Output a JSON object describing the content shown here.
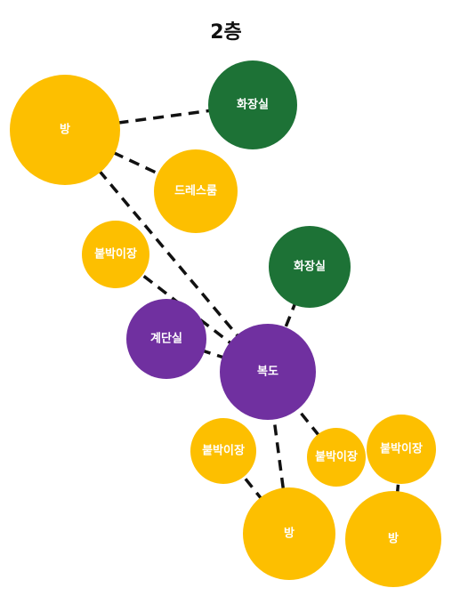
{
  "title": "2층",
  "colors": {
    "room": "#FDBF00",
    "bathroom": "#1D7236",
    "circulation": "#7030A0",
    "label": "#FFFFFF",
    "edge": "#111111"
  },
  "nodes": [
    {
      "id": "room-1",
      "label": "방",
      "kind": "room"
    },
    {
      "id": "bathroom-1",
      "label": "화장실",
      "kind": "bathroom"
    },
    {
      "id": "dressroom",
      "label": "드레스룸",
      "kind": "room"
    },
    {
      "id": "closet-1",
      "label": "붙박이장",
      "kind": "room"
    },
    {
      "id": "bathroom-2",
      "label": "화장실",
      "kind": "bathroom"
    },
    {
      "id": "stairwell",
      "label": "계단실",
      "kind": "circulation"
    },
    {
      "id": "hallway",
      "label": "복도",
      "kind": "circulation"
    },
    {
      "id": "closet-2",
      "label": "붙박이장",
      "kind": "room"
    },
    {
      "id": "closet-3",
      "label": "붙박이장",
      "kind": "room"
    },
    {
      "id": "closet-4",
      "label": "붙박이장",
      "kind": "room"
    },
    {
      "id": "room-2",
      "label": "방",
      "kind": "room"
    },
    {
      "id": "room-3",
      "label": "방",
      "kind": "room"
    }
  ],
  "edges": [
    {
      "from": "room-1",
      "to": "bathroom-1"
    },
    {
      "from": "room-1",
      "to": "dressroom"
    },
    {
      "from": "room-1",
      "to": "hallway"
    },
    {
      "from": "closet-1",
      "to": "hallway"
    },
    {
      "from": "bathroom-2",
      "to": "hallway"
    },
    {
      "from": "stairwell",
      "to": "hallway"
    },
    {
      "from": "hallway",
      "to": "closet-3"
    },
    {
      "from": "hallway",
      "to": "room-2"
    },
    {
      "from": "closet-2",
      "to": "room-2"
    },
    {
      "from": "closet-4",
      "to": "room-3"
    }
  ]
}
